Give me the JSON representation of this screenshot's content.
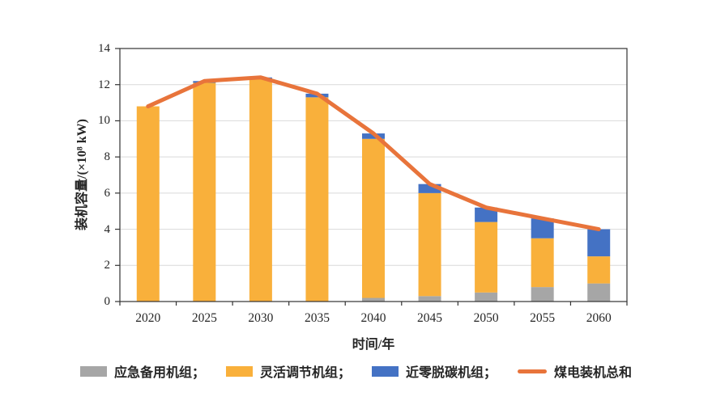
{
  "chart_data": {
    "type": "bar",
    "subtype": "stacked-bars-with-total-line",
    "title": "",
    "categories": [
      "2020",
      "2025",
      "2030",
      "2035",
      "2040",
      "2045",
      "2050",
      "2055",
      "2060"
    ],
    "stacked_series": [
      {
        "name": "应急备用机组",
        "color": "#A6A6A6",
        "values": [
          0,
          0,
          0,
          0,
          0.2,
          0.3,
          0.5,
          0.8,
          1.0
        ]
      },
      {
        "name": "灵活调节机组",
        "color": "#F9B03B",
        "values": [
          10.8,
          12.1,
          12.3,
          11.3,
          8.8,
          5.7,
          3.9,
          2.7,
          1.5
        ]
      },
      {
        "name": "近零脱碳机组",
        "color": "#4472C4",
        "values": [
          0,
          0.1,
          0.1,
          0.2,
          0.3,
          0.5,
          0.8,
          1.1,
          1.5
        ]
      }
    ],
    "line_series": {
      "name": "煤电装机总和",
      "color": "#E8743B",
      "values": [
        10.8,
        12.2,
        12.4,
        11.5,
        9.3,
        6.5,
        5.2,
        4.6,
        4.0
      ]
    },
    "xlabel": "时间/年",
    "ylabel": "装机容量/(×10⁸ kW)",
    "ylim": [
      0,
      14
    ],
    "ytick_step": 2,
    "yticks": [
      "0",
      "2",
      "4",
      "6",
      "8",
      "10",
      "12",
      "14"
    ],
    "grid": true,
    "gridline_color": "#D9D9D9",
    "axis_color": "#333333",
    "legend_position": "bottom",
    "legend": [
      {
        "label": "应急备用机组；",
        "swatch": "rect",
        "color": "#A6A6A6"
      },
      {
        "label": "灵活调节机组；",
        "swatch": "rect",
        "color": "#F9B03B"
      },
      {
        "label": "近零脱碳机组；",
        "swatch": "rect",
        "color": "#4472C4"
      },
      {
        "label": "煤电装机总和",
        "swatch": "line",
        "color": "#E8743B"
      }
    ]
  }
}
